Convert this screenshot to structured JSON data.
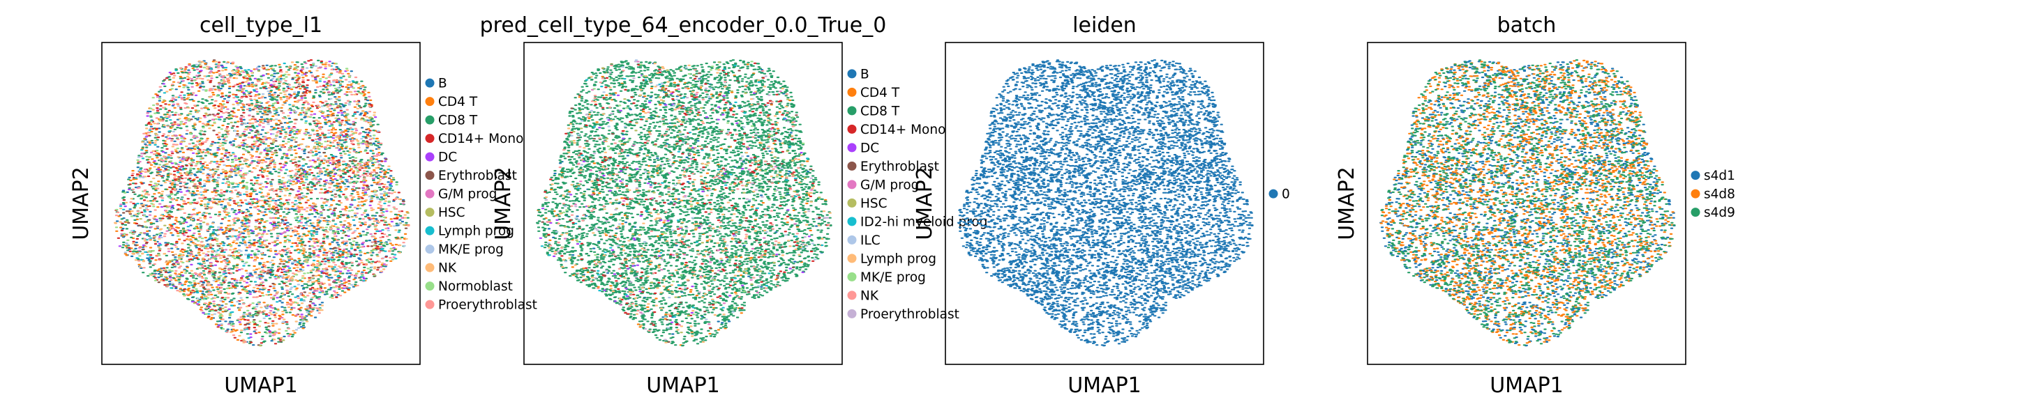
{
  "chart_data": [
    {
      "type": "scatter",
      "title": "cell_type_l1",
      "xlabel": "UMAP1",
      "ylabel": "UMAP2",
      "show_ylabel": true,
      "grid": false,
      "ticks": false,
      "legend_position": "right-outside",
      "categories": [
        "B",
        "CD4 T",
        "CD8 T",
        "CD14+ Mono",
        "DC",
        "Erythroblast",
        "G/M prog",
        "HSC",
        "Lymph prog",
        "MK/E prog",
        "NK",
        "Normoblast",
        "Proerythroblast"
      ],
      "colors": [
        "#1f77b4",
        "#ff7f0e",
        "#279e68",
        "#d62728",
        "#aa40fc",
        "#8c564b",
        "#e377c2",
        "#b5bd61",
        "#17becf",
        "#aec7e8",
        "#ffbb78",
        "#98df8a",
        "#ff9896"
      ],
      "weights": [
        12,
        16,
        22,
        8,
        3,
        4,
        3,
        2,
        3,
        3,
        10,
        6,
        8
      ]
    },
    {
      "type": "scatter",
      "title": "pred_cell_type_64_encoder_0.0_True_0",
      "xlabel": "UMAP1",
      "ylabel": "UMAP2",
      "show_ylabel": true,
      "grid": false,
      "ticks": false,
      "legend_position": "right-outside",
      "categories": [
        "B",
        "CD4 T",
        "CD8 T",
        "CD14+ Mono",
        "DC",
        "Erythroblast",
        "G/M prog",
        "HSC",
        "ID2-hi myeloid prog",
        "ILC",
        "Lymph prog",
        "MK/E prog",
        "NK",
        "Proerythroblast"
      ],
      "colors": [
        "#1f77b4",
        "#ff7f0e",
        "#279e68",
        "#d62728",
        "#aa40fc",
        "#8c564b",
        "#e377c2",
        "#b5bd61",
        "#17becf",
        "#aec7e8",
        "#ffbb78",
        "#98df8a",
        "#ff9896",
        "#c5b0d5"
      ],
      "weights": [
        2,
        3,
        80,
        3,
        1,
        1,
        1,
        1,
        1,
        1,
        4,
        1,
        2,
        1
      ]
    },
    {
      "type": "scatter",
      "title": "leiden",
      "xlabel": "UMAP1",
      "ylabel": "UMAP2",
      "show_ylabel": true,
      "grid": false,
      "ticks": false,
      "legend_position": "right-outside",
      "categories": [
        "0"
      ],
      "colors": [
        "#1f77b4"
      ],
      "weights": [
        1
      ]
    },
    {
      "type": "scatter",
      "title": "batch",
      "xlabel": "UMAP1",
      "ylabel": "UMAP2",
      "show_ylabel": true,
      "grid": false,
      "ticks": false,
      "legend_position": "right-outside",
      "categories": [
        "s4d1",
        "s4d8",
        "s4d9"
      ],
      "colors": [
        "#1f77b4",
        "#ff7f0e",
        "#279e68"
      ],
      "weights": [
        1,
        1,
        1
      ]
    }
  ]
}
